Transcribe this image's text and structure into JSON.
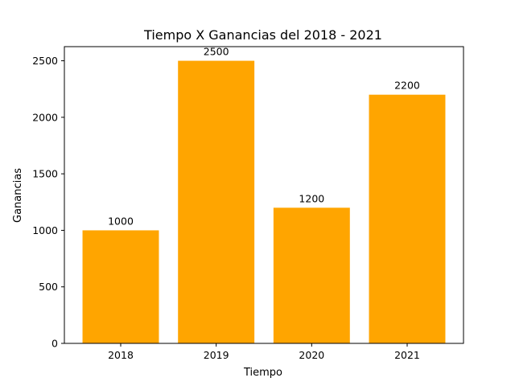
{
  "chart_data": {
    "type": "bar",
    "title": "Tiempo X Ganancias del 2018 - 2021",
    "xlabel": "Tiempo",
    "ylabel": "Ganancias",
    "categories": [
      "2018",
      "2019",
      "2020",
      "2021"
    ],
    "values": [
      1000,
      2500,
      1200,
      2200
    ],
    "data_labels": [
      "1000",
      "2500",
      "1200",
      "2200"
    ],
    "ylim": [
      0,
      2625
    ],
    "yticks": [
      0,
      500,
      1000,
      1500,
      2000,
      2500
    ],
    "ytick_labels": [
      "0",
      "500",
      "1000",
      "1500",
      "2000",
      "2500"
    ],
    "grid": false,
    "legend": "none",
    "bar_color": "#FFA500"
  }
}
